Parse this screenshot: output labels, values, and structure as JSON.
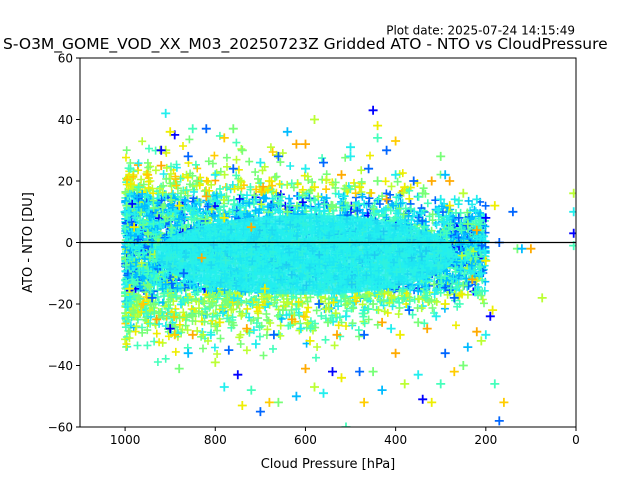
{
  "plot_date": "Plot date: 2025-07-24 14:15:49",
  "chart_data": {
    "type": "scatter",
    "title": "S-O3M_GOME_VOD_XX_M03_20250723Z Gridded ATO - NTO vs CloudPressure",
    "xlabel": "Cloud Pressure [hPa]",
    "ylabel": "ATO - NTO [DU]",
    "xlim": [
      1100,
      0
    ],
    "ylim": [
      -60,
      60
    ],
    "x_inverted": true,
    "x_ticks": [
      1000,
      800,
      600,
      400,
      200,
      0
    ],
    "x_tick_labels": [
      "1000",
      "800",
      "600",
      "400",
      "200",
      "0"
    ],
    "y_ticks": [
      -60,
      -40,
      -20,
      0,
      20,
      40,
      60
    ],
    "y_tick_labels": [
      "−60",
      "−40",
      "−20",
      "0",
      "20",
      "40",
      "60"
    ],
    "reference_line_y": 0,
    "marker": "+",
    "grid": false,
    "legend": "none",
    "colormap": [
      "#0000ff",
      "#0066ff",
      "#00bbff",
      "#22eeee",
      "#44ffbb",
      "#77ff77",
      "#bbff33",
      "#eeee00",
      "#ffcc00",
      "#ffaa00"
    ],
    "bulk_points": [
      [
        1000,
        10
      ],
      [
        990,
        -15
      ],
      [
        980,
        5
      ],
      [
        970,
        18
      ],
      [
        960,
        -20
      ],
      [
        950,
        22
      ],
      [
        940,
        0
      ],
      [
        930,
        -25
      ],
      [
        920,
        25
      ],
      [
        910,
        30
      ],
      [
        900,
        -28
      ],
      [
        890,
        35
      ],
      [
        880,
        12
      ],
      [
        870,
        -10
      ],
      [
        860,
        28
      ],
      [
        850,
        -24
      ],
      [
        840,
        20
      ],
      [
        830,
        -5
      ],
      [
        820,
        15
      ],
      [
        810,
        -30
      ],
      [
        800,
        22
      ],
      [
        790,
        -26
      ],
      [
        780,
        8
      ],
      [
        770,
        -35
      ],
      [
        760,
        24
      ],
      [
        750,
        -20
      ],
      [
        740,
        30
      ],
      [
        730,
        -28
      ],
      [
        720,
        5
      ],
      [
        710,
        -33
      ],
      [
        700,
        26
      ],
      [
        690,
        -15
      ],
      [
        680,
        20
      ],
      [
        670,
        -30
      ],
      [
        660,
        28
      ],
      [
        650,
        -22
      ],
      [
        640,
        10
      ],
      [
        630,
        -25
      ],
      [
        620,
        32
      ],
      [
        610,
        -28
      ],
      [
        600,
        24
      ],
      [
        590,
        -32
      ],
      [
        580,
        18
      ],
      [
        570,
        -20
      ],
      [
        560,
        26
      ],
      [
        550,
        -26
      ],
      [
        540,
        12
      ],
      [
        530,
        -30
      ],
      [
        520,
        22
      ],
      [
        510,
        -24
      ],
      [
        500,
        28
      ],
      [
        490,
        -18
      ],
      [
        480,
        18
      ],
      [
        470,
        -30
      ],
      [
        460,
        24
      ],
      [
        450,
        -20
      ],
      [
        440,
        20
      ],
      [
        430,
        -26
      ],
      [
        420,
        14
      ],
      [
        410,
        -28
      ],
      [
        400,
        22
      ],
      [
        390,
        -30
      ],
      [
        380,
        18
      ],
      [
        370,
        -22
      ],
      [
        360,
        20
      ],
      [
        350,
        -26
      ],
      [
        340,
        16
      ],
      [
        330,
        -28
      ],
      [
        320,
        20
      ],
      [
        310,
        -24
      ],
      [
        300,
        14
      ],
      [
        290,
        -20
      ],
      [
        280,
        12
      ],
      [
        270,
        -18
      ],
      [
        260,
        8
      ],
      [
        250,
        -14
      ],
      [
        240,
        6
      ],
      [
        230,
        -12
      ],
      [
        220,
        4
      ],
      [
        210,
        -10
      ],
      [
        205,
        2
      ],
      [
        200,
        -6
      ]
    ],
    "outlier_points": [
      [
        910,
        42
      ],
      [
        920,
        30
      ],
      [
        900,
        36
      ],
      [
        850,
        37
      ],
      [
        820,
        37
      ],
      [
        780,
        34
      ],
      [
        760,
        37
      ],
      [
        640,
        36
      ],
      [
        600,
        32
      ],
      [
        580,
        40
      ],
      [
        500,
        31
      ],
      [
        450,
        43
      ],
      [
        440,
        38
      ],
      [
        440,
        34
      ],
      [
        420,
        30
      ],
      [
        400,
        33
      ],
      [
        300,
        28
      ],
      [
        290,
        22
      ],
      [
        280,
        20
      ],
      [
        250,
        16
      ],
      [
        220,
        14
      ],
      [
        200,
        8
      ],
      [
        180,
        12
      ],
      [
        170,
        0
      ],
      [
        140,
        10
      ],
      [
        130,
        -2
      ],
      [
        120,
        -2
      ],
      [
        100,
        -2
      ],
      [
        75,
        -18
      ],
      [
        5,
        16
      ],
      [
        5,
        10
      ],
      [
        5,
        3
      ],
      [
        5,
        -1
      ],
      [
        940,
        -18
      ],
      [
        890,
        -30
      ],
      [
        880,
        -41
      ],
      [
        860,
        -36
      ],
      [
        850,
        -30
      ],
      [
        800,
        -39
      ],
      [
        780,
        -47
      ],
      [
        750,
        -43
      ],
      [
        740,
        -53
      ],
      [
        720,
        -48
      ],
      [
        700,
        -55
      ],
      [
        680,
        -52
      ],
      [
        660,
        -52
      ],
      [
        620,
        -50
      ],
      [
        600,
        -41
      ],
      [
        580,
        -47
      ],
      [
        560,
        -49
      ],
      [
        540,
        -42
      ],
      [
        520,
        -44
      ],
      [
        510,
        -60
      ],
      [
        480,
        -42
      ],
      [
        470,
        -52
      ],
      [
        450,
        -42
      ],
      [
        430,
        -48
      ],
      [
        400,
        -36
      ],
      [
        380,
        -46
      ],
      [
        350,
        -43
      ],
      [
        340,
        -51
      ],
      [
        320,
        -52
      ],
      [
        300,
        -46
      ],
      [
        290,
        -36
      ],
      [
        270,
        -42
      ],
      [
        250,
        -40
      ],
      [
        240,
        -34
      ],
      [
        220,
        -29
      ],
      [
        210,
        -32
      ],
      [
        200,
        -30
      ],
      [
        190,
        -24
      ],
      [
        185,
        -22
      ],
      [
        180,
        -46
      ],
      [
        170,
        -58
      ],
      [
        160,
        -52
      ]
    ]
  }
}
